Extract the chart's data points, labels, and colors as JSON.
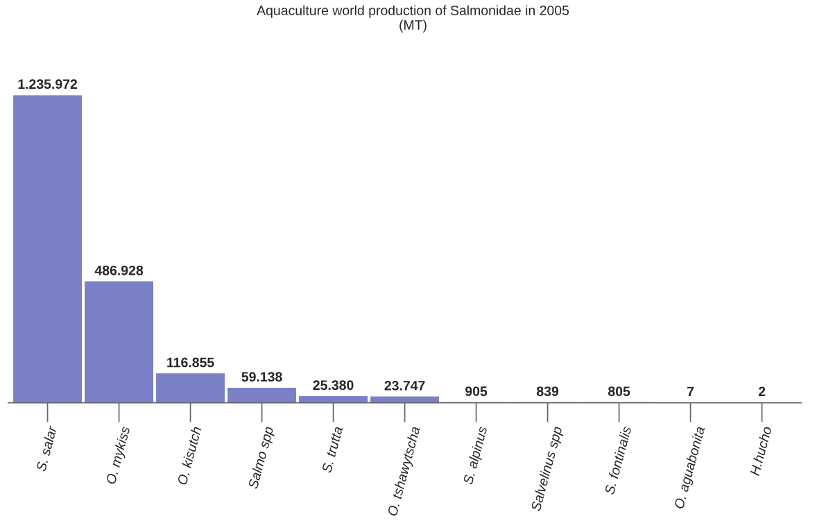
{
  "chart_data": {
    "type": "bar",
    "title": "Aquaculture world production of Salmonidae in 2005\n(MT)",
    "categories": [
      "S. salar",
      "O. mykiss",
      "O. kisutch",
      "Salmo spp",
      "S. trutta",
      "O. tshawytscha",
      "S. alpinus",
      "Salvelinus spp",
      "S. fontinalis",
      "O. aguabonita",
      "H.hucho"
    ],
    "values": [
      1235972,
      486928,
      116855,
      59138,
      25380,
      23747,
      905,
      839,
      805,
      7,
      2
    ],
    "value_labels": [
      "1.235.972",
      "486.928",
      "116.855",
      "59.138",
      "25.380",
      "23.747",
      "905",
      "839",
      "805",
      "7",
      "2"
    ],
    "color": "#7b80c6",
    "grid": false,
    "legend": false
  }
}
